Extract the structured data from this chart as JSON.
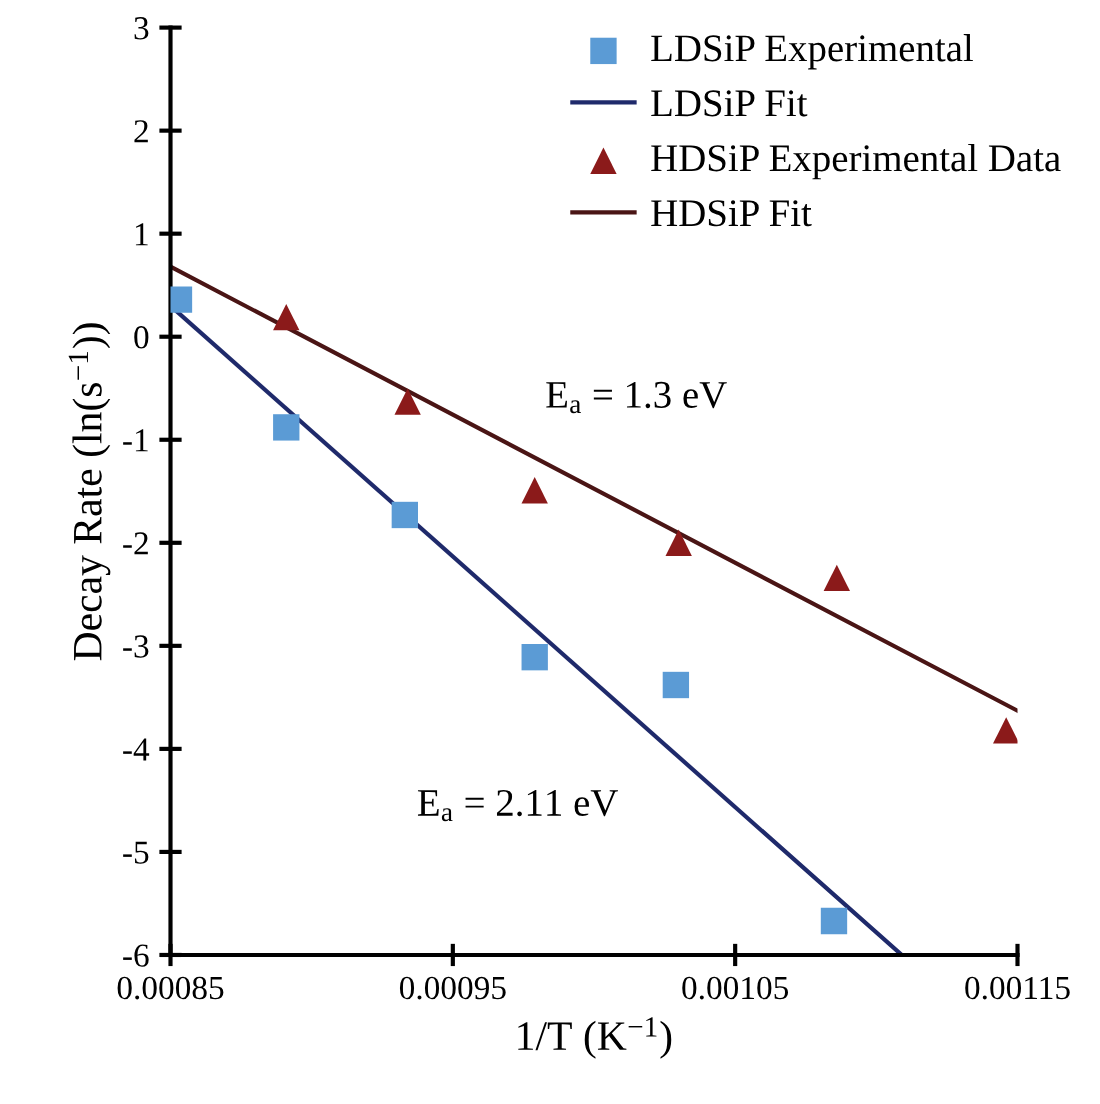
{
  "chart_data": {
    "type": "scatter",
    "xlabel": "1/T (K$^{−1}$)",
    "ylabel": "Decay Rate (ln(s$^{−1}$))",
    "xlim": [
      0.00085,
      0.00115
    ],
    "xticks": [
      0.00085,
      0.00095,
      0.00105,
      0.00115
    ],
    "ylim": [
      -6,
      3
    ],
    "yticks": [
      -6,
      -5,
      -4,
      -3,
      -2,
      -1,
      0,
      1,
      2,
      3
    ],
    "grid": false,
    "legend": "top right",
    "series": [
      {
        "name": "LDSiP Experimental",
        "marker": "square",
        "color": "#5b9bd5",
        "x": [
          0.000853,
          0.000891,
          0.000933,
          0.000979,
          0.001029,
          0.001085
        ],
        "values": [
          0.36,
          -0.88,
          -1.73,
          -3.11,
          -3.38,
          -5.67
        ]
      },
      {
        "name": "LDSiP Fit",
        "type": "line",
        "color": "#1f2a6b",
        "x": [
          0.00085,
          0.001109
        ],
        "values": [
          0.3,
          -6.0
        ]
      },
      {
        "name": "HDSiP Experimental Data",
        "marker": "triangle",
        "color": "#8b1a1a",
        "x": [
          0.000891,
          0.000934,
          0.000979,
          0.00103,
          0.001086,
          0.001146
        ],
        "values": [
          0.19,
          -0.63,
          -1.49,
          -2.0,
          -2.34,
          -3.82
        ]
      },
      {
        "name": "HDSiP Fit",
        "type": "line",
        "color": "#4a1515",
        "x": [
          0.00085,
          0.00115
        ],
        "values": [
          0.68,
          -3.63
        ]
      }
    ],
    "annotations": [
      "E$_{a}$ = 1.3 eV",
      "E$_{a}$ = 2.11 eV"
    ]
  }
}
